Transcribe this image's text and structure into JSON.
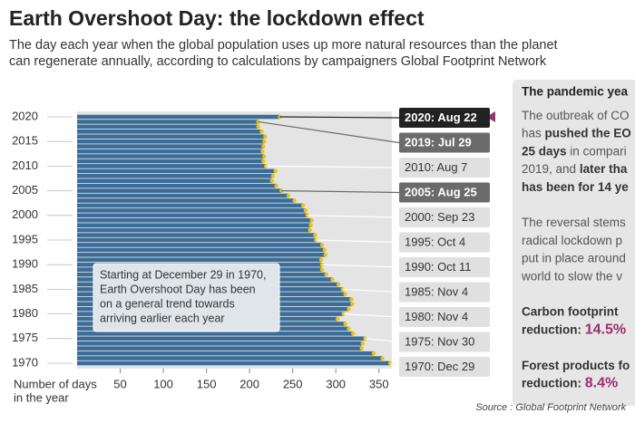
{
  "chart_data": {
    "type": "bar",
    "title": "Earth Overshoot Day: the lockdown effect",
    "subtitle": [
      "The day each year when the global population uses up more natural resources than the planet",
      "can regenerate annually, according to calculations by campaigners Global Footprint Network"
    ],
    "categories": [
      1970,
      null,
      null,
      null,
      null,
      1975,
      null,
      null,
      null,
      null,
      1980,
      null,
      null,
      null,
      null,
      1985,
      null,
      null,
      null,
      null,
      1990,
      null,
      null,
      null,
      null,
      1995,
      null,
      null,
      null,
      null,
      2000,
      null,
      null,
      null,
      null,
      2005,
      null,
      null,
      null,
      null,
      2010,
      null,
      null,
      null,
      null,
      2015,
      null,
      null,
      null,
      null,
      2020
    ],
    "values": [
      363,
      354,
      344,
      330,
      331,
      334,
      320,
      315,
      311,
      302,
      309,
      315,
      319,
      318,
      311,
      308,
      303,
      296,
      289,
      284,
      284,
      283,
      288,
      287,
      284,
      277,
      276,
      270,
      271,
      272,
      267,
      265,
      262,
      252,
      245,
      237,
      231,
      226,
      227,
      230,
      219,
      216,
      217,
      215,
      216,
      217,
      218,
      214,
      210,
      210,
      235
    ],
    "color": "#3b6d98",
    "marker_color": "#f2c200",
    "xlim": [
      0,
      365
    ],
    "xticks": [
      50,
      100,
      150,
      200,
      250,
      300,
      350
    ],
    "xlabel": [
      "Number of days",
      "in the year"
    ],
    "callouts": [
      {
        "index": 50,
        "text": "2020: Aug 22",
        "style": "black"
      },
      {
        "index": 49,
        "text": "2019: Jul 29",
        "style": "dark"
      },
      {
        "index": 40,
        "text": "2010: Aug 7",
        "style": "light"
      },
      {
        "index": 35,
        "text": "2005: Aug 25",
        "style": "dark"
      },
      {
        "index": 30,
        "text": "2000: Sep 23",
        "style": "light"
      },
      {
        "index": 25,
        "text": "1995: Oct 4",
        "style": "light"
      },
      {
        "index": 20,
        "text": "1990: Oct 11",
        "style": "light"
      },
      {
        "index": 15,
        "text": "1985: Nov 4",
        "style": "light"
      },
      {
        "index": 10,
        "text": "1980: Nov 4",
        "style": "light"
      },
      {
        "index": 5,
        "text": "1975: Nov 30",
        "style": "light"
      },
      {
        "index": 0,
        "text": "1970: Dec 29",
        "style": "light"
      }
    ],
    "note": [
      "Starting at December 29 in 1970,",
      "Earth Overshoot Day has been",
      "on a general trend towards",
      "arriving earlier each year"
    ],
    "panel": {
      "title": "The pandemic yea",
      "lines": [
        [
          {
            "text": "The outbreak of CO",
            "bold": false
          }
        ],
        [
          {
            "text": "has ",
            "bold": false
          },
          {
            "text": "pushed the EO",
            "bold": true
          }
        ],
        [
          {
            "text": "25 days",
            "bold": true
          },
          {
            "text": " in compari",
            "bold": false
          }
        ],
        [
          {
            "text": "2019, and ",
            "bold": false
          },
          {
            "text": "later tha",
            "bold": true
          }
        ],
        [
          {
            "text": "has been for 14 ye",
            "bold": true
          }
        ],
        [],
        [
          {
            "text": "The reversal stems",
            "bold": false
          }
        ],
        [
          {
            "text": "radical lockdown p",
            "bold": false
          }
        ],
        [
          {
            "text": "put in place around",
            "bold": false
          }
        ],
        [
          {
            "text": "world to slow the v",
            "bold": false
          }
        ],
        [],
        [
          {
            "text": "Carbon footprint",
            "bold": true
          }
        ],
        [
          {
            "text": "reduction: ",
            "bold": true
          },
          {
            "text": "14.5%",
            "bold": true,
            "accent": true
          }
        ],
        [],
        [
          {
            "text": "Forest products fo",
            "bold": true
          }
        ],
        [
          {
            "text": "reduction: ",
            "bold": true
          },
          {
            "text": "8.4%",
            "bold": true,
            "accent": true
          }
        ]
      ]
    },
    "source": "Source : Global Footprint Network"
  }
}
